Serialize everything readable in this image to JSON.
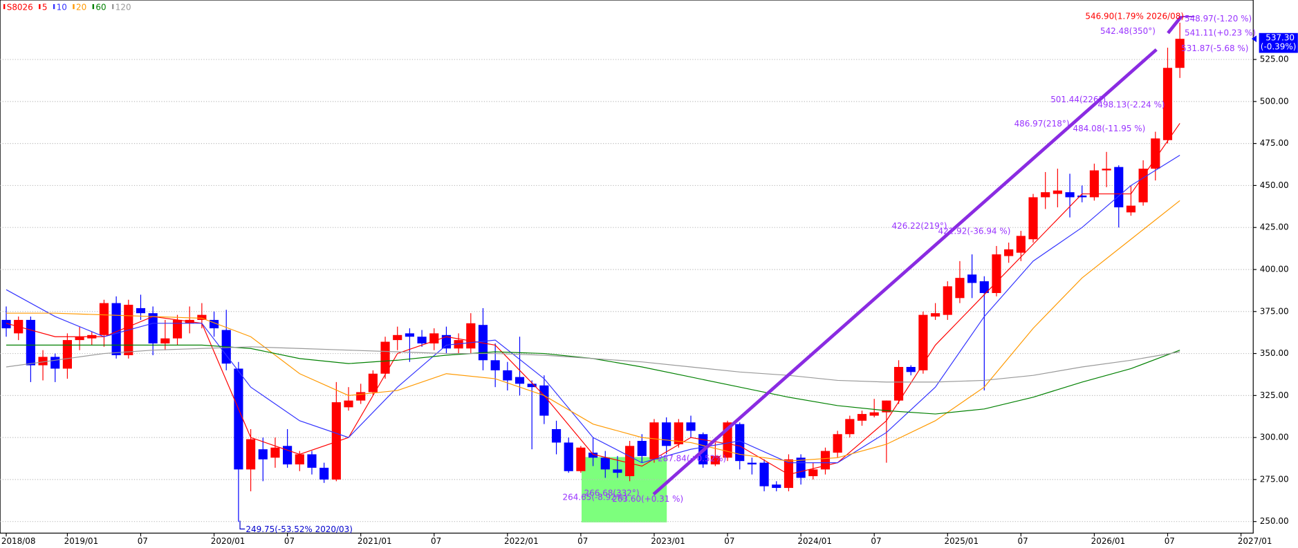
{
  "chart_data": {
    "type": "candlestick",
    "name": "S8026",
    "up_color": "#ff0000",
    "down_color": "#0000ff",
    "open": [
      370,
      362,
      370,
      343,
      348,
      341,
      358,
      359,
      361,
      380,
      349,
      377,
      374,
      356,
      359,
      368,
      370,
      370,
      364,
      341,
      281,
      293,
      288,
      295,
      284,
      290,
      282,
      275,
      318,
      322,
      327,
      338,
      358,
      362,
      360,
      356,
      361,
      353,
      353,
      367,
      346,
      340,
      336,
      332,
      331,
      305,
      297,
      280,
      291,
      288,
      281,
      277,
      298,
      287,
      309,
      296,
      309,
      302,
      284,
      288,
      308,
      285,
      285,
      272,
      270,
      288,
      277,
      281,
      291,
      302,
      310,
      313,
      315,
      322,
      342,
      340,
      372,
      373,
      383,
      397,
      393,
      386,
      408,
      410,
      418,
      443,
      445,
      446,
      444,
      443,
      459,
      461,
      434,
      440,
      460,
      477,
      520
    ],
    "high": [
      378,
      372,
      372,
      352,
      350,
      362,
      366,
      363,
      382,
      384,
      382,
      385,
      378,
      370,
      373,
      378,
      380,
      375,
      376,
      345,
      305,
      300,
      300,
      305,
      292,
      292,
      285,
      333,
      330,
      332,
      340,
      360,
      366,
      365,
      364,
      365,
      366,
      362,
      374,
      377,
      356,
      345,
      360,
      334,
      337,
      310,
      300,
      295,
      300,
      292,
      289,
      298,
      302,
      311,
      312,
      311,
      313,
      303,
      297,
      310,
      309,
      288,
      287,
      274,
      290,
      290,
      285,
      294,
      304,
      313,
      316,
      323,
      322,
      346,
      343,
      375,
      380,
      393,
      405,
      409,
      396,
      414,
      416,
      423,
      445,
      458,
      460,
      457,
      450,
      463,
      470,
      462,
      450,
      465,
      482,
      532,
      546.9
    ],
    "low": [
      360,
      358,
      333,
      334,
      333,
      335,
      352,
      355,
      354,
      347,
      347,
      370,
      349,
      352,
      355,
      362,
      365,
      360,
      340,
      249.75,
      268,
      274,
      282,
      282,
      280,
      278,
      273,
      274,
      316,
      320,
      325,
      335,
      352,
      345,
      354,
      352,
      350,
      350,
      350,
      340,
      330,
      328,
      325,
      293,
      308,
      290,
      279,
      279,
      283,
      276,
      276,
      274,
      285,
      285,
      290,
      294,
      300,
      282,
      283,
      286,
      281,
      278,
      268,
      268,
      268,
      272,
      275,
      278,
      288,
      300,
      307,
      312,
      285,
      320,
      337,
      338,
      370,
      370,
      380,
      383,
      328,
      384,
      404,
      405,
      416,
      436,
      437,
      431,
      440,
      441,
      449,
      425,
      432,
      438,
      453,
      475,
      514
    ],
    "close": [
      365,
      370,
      343,
      348,
      341,
      358,
      360,
      361,
      380,
      349,
      379,
      374,
      356,
      359,
      370,
      370,
      373,
      365,
      344,
      281,
      299,
      287,
      294,
      284,
      290,
      282,
      275,
      321,
      322,
      327,
      338,
      357,
      361,
      360,
      356,
      362,
      353,
      358,
      368,
      346,
      340,
      334,
      332,
      330,
      313,
      297,
      280,
      294,
      288,
      281,
      279,
      295,
      289,
      309,
      295,
      309,
      304,
      284,
      289,
      309,
      286,
      284,
      271,
      270,
      287,
      276,
      281,
      292,
      302,
      311,
      314,
      315,
      322,
      342,
      339,
      373,
      374,
      390,
      395,
      392,
      386,
      409,
      412,
      420,
      443,
      446,
      447,
      443,
      443,
      459,
      460,
      437,
      438,
      460,
      478,
      520,
      537.3
    ],
    "xlim": [
      -0.5,
      102
    ],
    "ylim": [
      243.1,
      560.4
    ],
    "grid": true,
    "yticks": [
      {
        "value": 250,
        "label": "250.00"
      },
      {
        "value": 275,
        "label": "275.00"
      },
      {
        "value": 300,
        "label": "300.00"
      },
      {
        "value": 325,
        "label": "325.00"
      },
      {
        "value": 350,
        "label": "350.00"
      },
      {
        "value": 375,
        "label": "375.00"
      },
      {
        "value": 400,
        "label": "400.00"
      },
      {
        "value": 425,
        "label": "425.00"
      },
      {
        "value": 450,
        "label": "450.00"
      },
      {
        "value": 475,
        "label": "475.00"
      },
      {
        "value": 500,
        "label": "500.00"
      },
      {
        "value": 525,
        "label": "525.00"
      }
    ],
    "xticks": [
      {
        "value": 0,
        "label": "2018/08"
      },
      {
        "value": 5,
        "label": "2019/01"
      },
      {
        "value": 11,
        "label": "07"
      },
      {
        "value": 17,
        "label": "2020/01"
      },
      {
        "value": 23,
        "label": "07"
      },
      {
        "value": 29,
        "label": "2021/01"
      },
      {
        "value": 35,
        "label": "07"
      },
      {
        "value": 41,
        "label": "2022/01"
      },
      {
        "value": 47,
        "label": "07"
      },
      {
        "value": 53,
        "label": "2023/01"
      },
      {
        "value": 59,
        "label": "07"
      },
      {
        "value": 65,
        "label": "2024/01"
      },
      {
        "value": 71,
        "label": "07"
      },
      {
        "value": 77,
        "label": "2025/01"
      },
      {
        "value": 83,
        "label": "07"
      },
      {
        "value": 89,
        "label": "2026/01"
      },
      {
        "value": 95,
        "label": "07"
      },
      {
        "value": 101,
        "label": "2027/01"
      }
    ],
    "series": [
      {
        "name": "5",
        "color": "#ff0000",
        "x": [
          0,
          4,
          8,
          12,
          16,
          20,
          24,
          28,
          32,
          36,
          40,
          44,
          48,
          52,
          56,
          60,
          64,
          68,
          72,
          76,
          80,
          84,
          88,
          92,
          96
        ],
        "values": [
          368,
          360,
          360,
          372,
          368,
          300,
          290,
          300,
          350,
          360,
          355,
          325,
          290,
          283,
          300,
          295,
          278,
          285,
          310,
          355,
          385,
          415,
          445,
          445,
          487
        ]
      },
      {
        "name": "10",
        "color": "#3333ff",
        "x": [
          0,
          4,
          8,
          12,
          16,
          20,
          24,
          28,
          32,
          36,
          40,
          44,
          48,
          52,
          56,
          60,
          64,
          68,
          72,
          76,
          80,
          84,
          88,
          92,
          96
        ],
        "values": [
          388,
          372,
          360,
          368,
          368,
          330,
          310,
          300,
          330,
          355,
          358,
          335,
          300,
          285,
          293,
          298,
          285,
          285,
          303,
          330,
          372,
          405,
          425,
          450,
          468
        ]
      },
      {
        "name": "20",
        "color": "#ff9900",
        "x": [
          0,
          4,
          8,
          12,
          16,
          20,
          24,
          28,
          32,
          36,
          40,
          44,
          48,
          52,
          56,
          60,
          64,
          68,
          72,
          76,
          80,
          84,
          88,
          92,
          96
        ],
        "values": [
          374,
          374,
          373,
          372,
          371,
          360,
          338,
          325,
          328,
          338,
          335,
          325,
          308,
          300,
          297,
          290,
          286,
          288,
          296,
          310,
          330,
          365,
          395,
          418,
          441
        ]
      },
      {
        "name": "60",
        "color": "#008000",
        "x": [
          0,
          4,
          8,
          12,
          16,
          20,
          24,
          28,
          32,
          36,
          40,
          44,
          48,
          52,
          56,
          60,
          64,
          68,
          72,
          76,
          80,
          84,
          88,
          92,
          96
        ],
        "values": [
          355,
          355,
          355,
          355,
          355,
          353,
          347,
          344,
          346,
          349,
          351,
          350,
          347,
          342,
          336,
          330,
          324,
          319,
          316,
          314,
          317,
          324,
          333,
          341,
          352
        ]
      },
      {
        "name": "120",
        "color": "#999999",
        "x": [
          0,
          4,
          8,
          12,
          16,
          20,
          24,
          28,
          32,
          36,
          40,
          44,
          48,
          52,
          56,
          60,
          64,
          68,
          72,
          76,
          80,
          84,
          88,
          92,
          96
        ],
        "values": [
          342,
          346,
          350,
          352,
          353,
          354,
          353,
          352,
          351,
          350,
          350,
          349,
          347,
          345,
          342,
          339,
          337,
          334,
          333,
          333,
          334,
          337,
          342,
          346,
          351
        ]
      }
    ],
    "annotations": [
      {
        "text": "249.75(-53.52% 2020/03)",
        "color": "#0000cc"
      },
      {
        "text": "546.90(1.79% 2026/08)",
        "color": "#ff0000"
      },
      {
        "text": "548.97(-1.20 %)",
        "color": "#9933ff"
      },
      {
        "text": "542.48(350°)",
        "color": "#9933ff"
      },
      {
        "text": "541.11(+0.23 %)",
        "color": "#9933ff"
      },
      {
        "text": "531.87(-5.68 %)",
        "color": "#9933ff"
      },
      {
        "text": "501.44(226°)",
        "color": "#9933ff"
      },
      {
        "text": "498.13(-2.24 %)",
        "color": "#9933ff"
      },
      {
        "text": "486.97(218°)",
        "color": "#9933ff"
      },
      {
        "text": "484.08(-11.95 %)",
        "color": "#9933ff"
      },
      {
        "text": "426.22(219°)",
        "color": "#9933ff"
      },
      {
        "text": "422.92(-36.94 %)",
        "color": "#9933ff"
      },
      {
        "text": "264.65(-8.92%)",
        "color": "#9933ff"
      },
      {
        "text": "266.68(332°)",
        "color": "#9933ff"
      },
      {
        "text": "263.60(+0.31 %)",
        "color": "#9933ff"
      },
      {
        "text": "287.84(+0.52%)",
        "color": "#9933ff"
      }
    ],
    "last_price": {
      "value": 537.3,
      "label": "537.30"
    },
    "last_change": "(-0.39%)"
  }
}
